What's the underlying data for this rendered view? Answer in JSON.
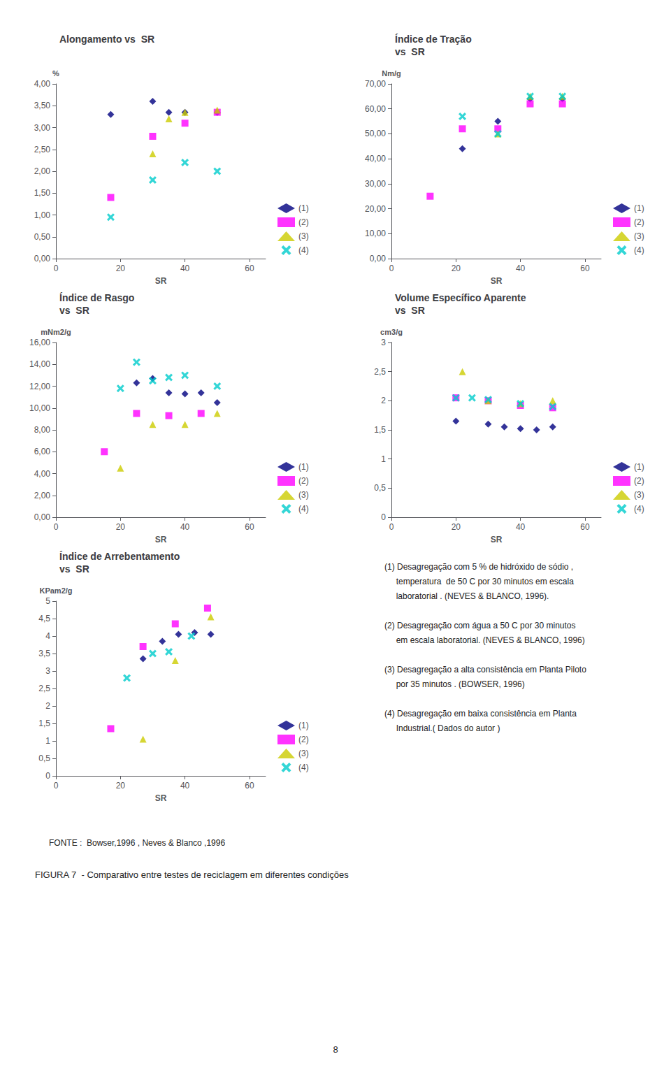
{
  "chart_data": [
    {
      "type": "scatter",
      "title": "Alongamento vs  SR",
      "xlabel": "SR",
      "ylabel": "%",
      "xlim": [
        0,
        65
      ],
      "ylim": [
        0.0,
        4.0
      ],
      "xticks": [
        0,
        20,
        40,
        60
      ],
      "yticks": [
        {
          "value": 0.0,
          "label": "0,00"
        },
        {
          "value": 0.5,
          "label": "0,50"
        },
        {
          "value": 1.0,
          "label": "1,00"
        },
        {
          "value": 1.5,
          "label": "1,50"
        },
        {
          "value": 2.0,
          "label": "2,00"
        },
        {
          "value": 2.5,
          "label": "2,50"
        },
        {
          "value": 3.0,
          "label": "3,00"
        },
        {
          "value": 3.5,
          "label": "3,50"
        },
        {
          "value": 4.0,
          "label": "4,00"
        }
      ],
      "grid": false,
      "legend": "lower right",
      "series": [
        {
          "name": "(1)",
          "color": "#000080",
          "marker": "diamond",
          "x": [
            17,
            30,
            35,
            40,
            50
          ],
          "values": [
            3.3,
            3.6,
            3.35,
            3.35,
            3.35
          ]
        },
        {
          "name": "(2)",
          "color": "#ff00ff",
          "marker": "square",
          "x": [
            17,
            30,
            40,
            50
          ],
          "values": [
            1.4,
            2.8,
            3.1,
            3.35
          ]
        },
        {
          "name": "(3)",
          "color": "#cccc00",
          "marker": "triangle",
          "x": [
            30,
            35,
            40,
            50
          ],
          "values": [
            2.4,
            3.2,
            3.35,
            3.4
          ]
        },
        {
          "name": "(4)",
          "color": "#00cccc",
          "marker": "x",
          "x": [
            17,
            30,
            40,
            50
          ],
          "values": [
            0.95,
            1.8,
            2.2,
            2.0
          ]
        }
      ]
    },
    {
      "type": "scatter",
      "title": "Índice de Tração\nvs  SR",
      "xlabel": "SR",
      "ylabel": "Nm/g",
      "xlim": [
        0,
        65
      ],
      "ylim": [
        0,
        70
      ],
      "xticks": [
        0,
        20,
        40,
        60
      ],
      "yticks": [
        {
          "value": 0,
          "label": "0,00"
        },
        {
          "value": 10,
          "label": "10,00"
        },
        {
          "value": 20,
          "label": "20,00"
        },
        {
          "value": 30,
          "label": "30,00"
        },
        {
          "value": 40,
          "label": "40,00"
        },
        {
          "value": 50,
          "label": "50,00"
        },
        {
          "value": 60,
          "label": "60,00"
        },
        {
          "value": 70,
          "label": "70,00"
        }
      ],
      "grid": false,
      "legend": "lower right",
      "series": [
        {
          "name": "(1)",
          "color": "#000080",
          "marker": "diamond",
          "x": [
            22,
            33,
            43,
            53
          ],
          "values": [
            44,
            55,
            64,
            64
          ]
        },
        {
          "name": "(2)",
          "color": "#ff00ff",
          "marker": "square",
          "x": [
            12,
            22,
            33,
            43,
            53
          ],
          "values": [
            25,
            52,
            52,
            62,
            62
          ]
        },
        {
          "name": "(3)",
          "color": "#cccc00",
          "marker": "triangle",
          "x": [
            33,
            43,
            53
          ],
          "values": [
            50,
            65,
            65
          ]
        },
        {
          "name": "(4)",
          "color": "#00cccc",
          "marker": "x",
          "x": [
            22,
            33,
            43,
            53
          ],
          "values": [
            57,
            50,
            65,
            65
          ]
        }
      ]
    },
    {
      "type": "scatter",
      "title": "Índice de Rasgo\nvs  SR",
      "xlabel": "SR",
      "ylabel": "mNm2/g",
      "xlim": [
        0,
        65
      ],
      "ylim": [
        0,
        16
      ],
      "xticks": [
        0,
        20,
        40,
        60
      ],
      "yticks": [
        {
          "value": 0,
          "label": "0,00"
        },
        {
          "value": 2,
          "label": "2,00"
        },
        {
          "value": 4,
          "label": "4,00"
        },
        {
          "value": 6,
          "label": "6,00"
        },
        {
          "value": 8,
          "label": "8,00"
        },
        {
          "value": 10,
          "label": "10,00"
        },
        {
          "value": 12,
          "label": "12,00"
        },
        {
          "value": 14,
          "label": "14,00"
        },
        {
          "value": 16,
          "label": "16,00"
        }
      ],
      "grid": false,
      "legend": "lower right",
      "series": [
        {
          "name": "(1)",
          "color": "#000080",
          "marker": "diamond",
          "x": [
            25,
            30,
            35,
            40,
            45,
            50
          ],
          "values": [
            12.3,
            12.7,
            11.4,
            11.3,
            11.4,
            10.5
          ]
        },
        {
          "name": "(2)",
          "color": "#ff00ff",
          "marker": "square",
          "x": [
            15,
            25,
            35,
            45
          ],
          "values": [
            6.0,
            9.5,
            9.3,
            9.5
          ]
        },
        {
          "name": "(3)",
          "color": "#cccc00",
          "marker": "triangle",
          "x": [
            20,
            30,
            40,
            50
          ],
          "values": [
            4.5,
            8.5,
            8.5,
            9.5
          ]
        },
        {
          "name": "(4)",
          "color": "#00cccc",
          "marker": "x",
          "x": [
            20,
            25,
            30,
            35,
            40,
            50
          ],
          "values": [
            11.8,
            14.2,
            12.5,
            12.8,
            13.0,
            12.0
          ]
        }
      ]
    },
    {
      "type": "scatter",
      "title": "Volume Específico Aparente\nvs  SR",
      "xlabel": "SR",
      "ylabel": "cm3/g",
      "xlim": [
        0,
        65
      ],
      "ylim": [
        0,
        3.0
      ],
      "xticks": [
        0,
        20,
        40,
        60
      ],
      "yticks": [
        0,
        {
          "value": 0.5,
          "label": "0,5"
        },
        1,
        {
          "value": 1.5,
          "label": "1,5"
        },
        2,
        {
          "value": 2.5,
          "label": "2,5"
        },
        3
      ],
      "grid": false,
      "legend": "lower right",
      "series": [
        {
          "name": "(1)",
          "color": "#000080",
          "marker": "diamond",
          "x": [
            20,
            30,
            35,
            40,
            45,
            50
          ],
          "values": [
            1.65,
            1.6,
            1.55,
            1.52,
            1.5,
            1.55
          ]
        },
        {
          "name": "(2)",
          "color": "#ff00ff",
          "marker": "square",
          "x": [
            20,
            30,
            40,
            50
          ],
          "values": [
            2.05,
            2.0,
            1.92,
            1.88
          ]
        },
        {
          "name": "(3)",
          "color": "#cccc00",
          "marker": "triangle",
          "x": [
            22,
            30,
            40,
            50
          ],
          "values": [
            2.5,
            2.0,
            1.95,
            2.0
          ]
        },
        {
          "name": "(4)",
          "color": "#00cccc",
          "marker": "x",
          "x": [
            20,
            25,
            30,
            40,
            50
          ],
          "values": [
            2.05,
            2.05,
            2.02,
            1.95,
            1.9
          ]
        }
      ]
    },
    {
      "type": "scatter",
      "title": "Índice de Arrebentamento\nvs  SR",
      "xlabel": "SR",
      "ylabel": "KPam2/g",
      "xlim": [
        0,
        65
      ],
      "ylim": [
        0,
        5.0
      ],
      "xticks": [
        0,
        20,
        40,
        60
      ],
      "yticks": [
        0,
        {
          "value": 0.5,
          "label": "0,5"
        },
        1,
        {
          "value": 1.5,
          "label": "1,5"
        },
        2,
        {
          "value": 2.5,
          "label": "2,5"
        },
        3,
        {
          "value": 3.5,
          "label": "3,5"
        },
        4,
        {
          "value": 4.5,
          "label": "4,5"
        },
        5
      ],
      "grid": false,
      "legend": "lower right",
      "series": [
        {
          "name": "(1)",
          "color": "#000080",
          "marker": "diamond",
          "x": [
            27,
            33,
            38,
            43,
            48
          ],
          "values": [
            3.35,
            3.85,
            4.05,
            4.1,
            4.05
          ]
        },
        {
          "name": "(2)",
          "color": "#ff00ff",
          "marker": "square",
          "x": [
            17,
            27,
            37,
            47
          ],
          "values": [
            1.35,
            3.7,
            4.35,
            4.8
          ]
        },
        {
          "name": "(3)",
          "color": "#cccc00",
          "marker": "triangle",
          "x": [
            27,
            37,
            48
          ],
          "values": [
            1.05,
            3.3,
            4.55
          ]
        },
        {
          "name": "(4)",
          "color": "#00cccc",
          "marker": "x",
          "x": [
            22,
            30,
            35,
            42
          ],
          "values": [
            2.8,
            3.5,
            3.55,
            4.0
          ]
        }
      ]
    }
  ],
  "annotations": [
    [
      "(1) Desagregação com 5 % de hidróxido de sódio ,",
      "     temperatura  de 50 C por 30 minutos em escala",
      "     laboratorial . (NEVES & BLANCO, 1996)."
    ],
    [
      "(2) Desagregação com água a 50 C por 30 minutos",
      "     em escala laboratorial. (NEVES & BLANCO, 1996)"
    ],
    [
      "(3) Desagregação a alta consistência em Planta Piloto",
      "     por 35 minutos . (BOWSER, 1996)"
    ],
    [
      "(4) Desagregação em baixa consistência em Planta",
      "     Industrial.( Dados do autor )"
    ]
  ],
  "source": "FONTE :  Bowser,1996 , Neves & Blanco ,1996",
  "caption": "FIGURA 7  - Comparativo entre testes de reciclagem em diferentes condições",
  "page_number": "8"
}
